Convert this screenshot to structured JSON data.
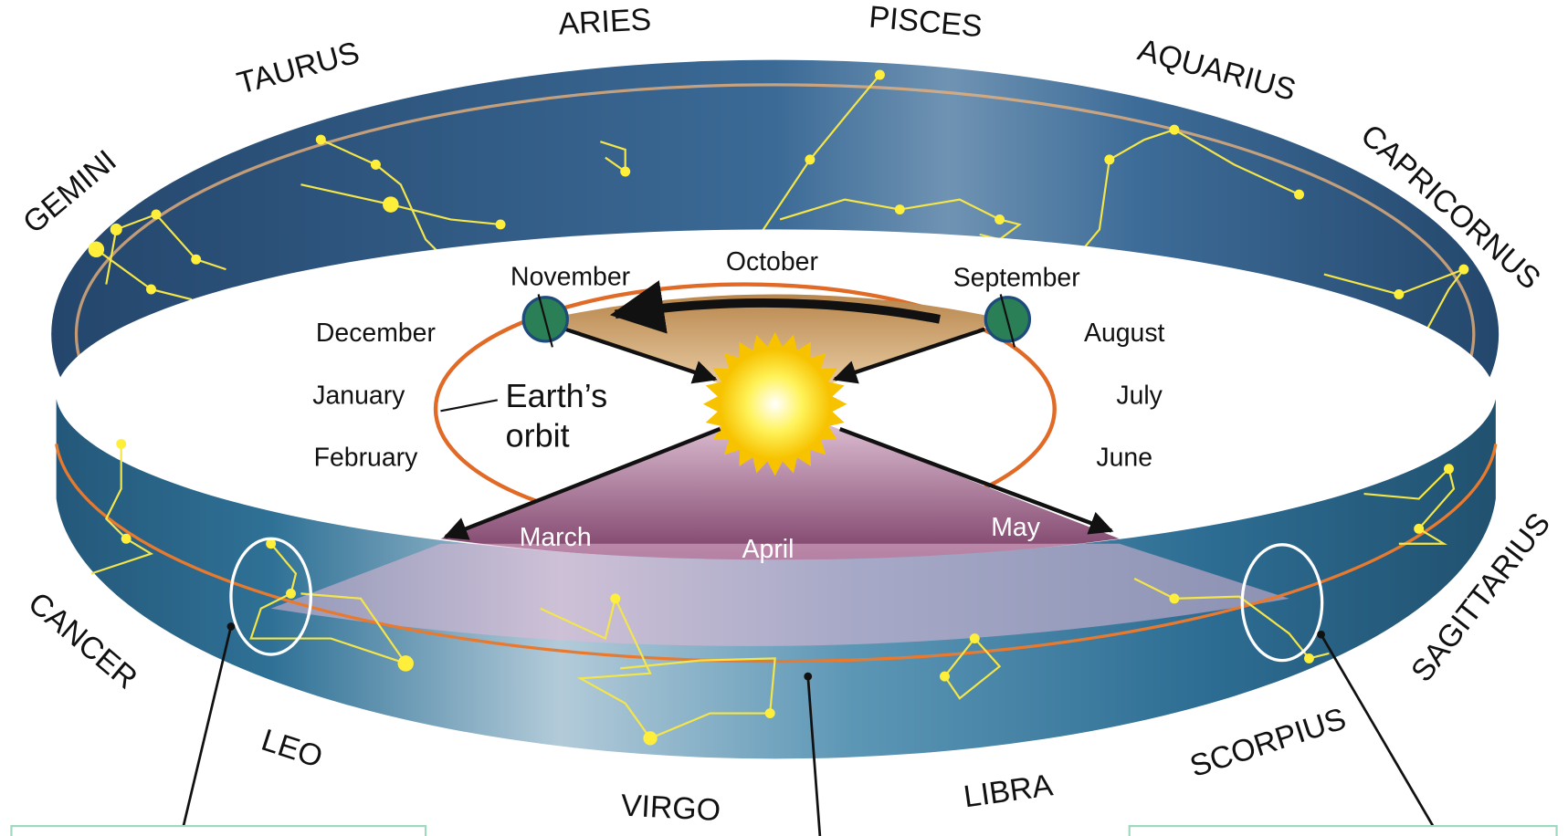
{
  "constellations": [
    "GEMINI",
    "TAURUS",
    "ARIES",
    "PISCES",
    "AQUARIUS",
    "CAPRICORNUS",
    "SAGITTARIUS",
    "SCORPIUS",
    "LIBRA",
    "VIRGO",
    "LEO",
    "CANCER"
  ],
  "months": [
    "November",
    "October",
    "September",
    "December",
    "August",
    "January",
    "July",
    "February",
    "June",
    "March",
    "April",
    "May"
  ],
  "orbit_label": {
    "line1": "Earth’s",
    "line2": "orbit"
  }
}
